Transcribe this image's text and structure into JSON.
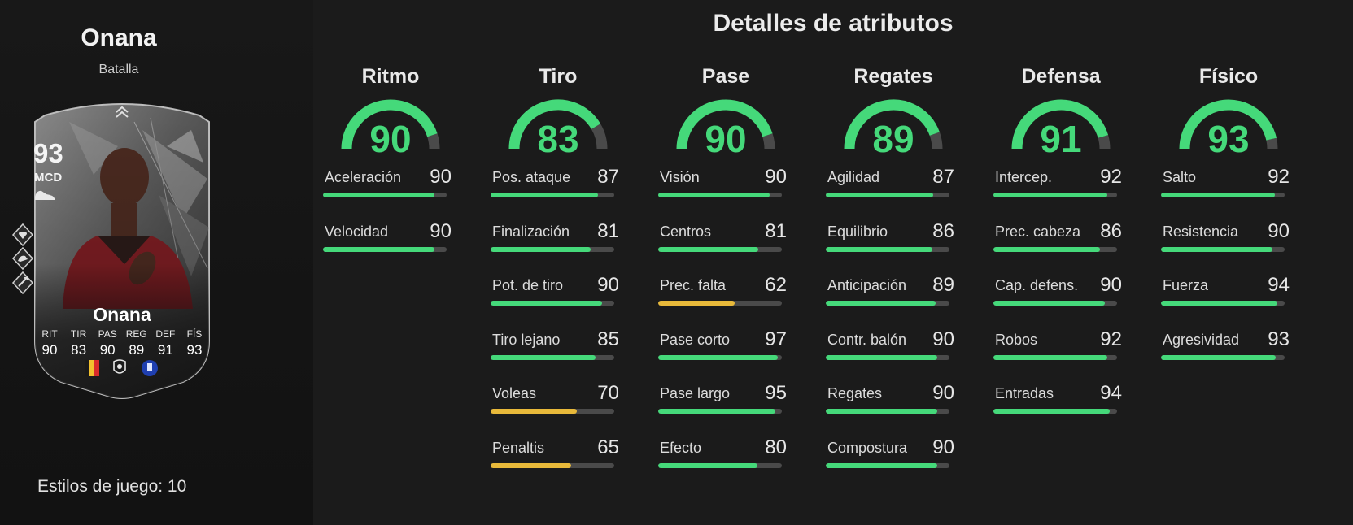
{
  "player": {
    "name": "Onana",
    "variant": "Batalla",
    "playstyles_label": "Estilos de juego: 10"
  },
  "card": {
    "rating": "93",
    "position": "MCD",
    "name": "Onana",
    "stats": [
      {
        "label": "RIT",
        "value": "90"
      },
      {
        "label": "TIR",
        "value": "83"
      },
      {
        "label": "PAS",
        "value": "90"
      },
      {
        "label": "REG",
        "value": "89"
      },
      {
        "label": "DEF",
        "value": "91"
      },
      {
        "label": "FÍS",
        "value": "93"
      }
    ],
    "nation_flag_colors": [
      "#1a1a1a",
      "#f2c12e",
      "#d92b2b"
    ],
    "league_icon": "premier-league-lion-icon",
    "club_icon": "everton-crest-icon",
    "playstyle_badges": [
      "heart-shield-icon",
      "arm-flex-icon",
      "boot-wrench-icon"
    ]
  },
  "attributes": {
    "title": "Detalles de atributos",
    "colors": {
      "high": "#45d97a",
      "mid": "#e8b93a",
      "track": "#4a4a4a"
    },
    "groups": [
      {
        "name": "Ritmo",
        "value": "90",
        "items": [
          {
            "name": "Aceleración",
            "value": "90"
          },
          {
            "name": "Velocidad",
            "value": "90"
          }
        ]
      },
      {
        "name": "Tiro",
        "value": "83",
        "items": [
          {
            "name": "Pos. ataque",
            "value": "87"
          },
          {
            "name": "Finalización",
            "value": "81"
          },
          {
            "name": "Pot. de tiro",
            "value": "90"
          },
          {
            "name": "Tiro lejano",
            "value": "85"
          },
          {
            "name": "Voleas",
            "value": "70"
          },
          {
            "name": "Penaltis",
            "value": "65"
          }
        ]
      },
      {
        "name": "Pase",
        "value": "90",
        "items": [
          {
            "name": "Visión",
            "value": "90"
          },
          {
            "name": "Centros",
            "value": "81"
          },
          {
            "name": "Prec. falta",
            "value": "62"
          },
          {
            "name": "Pase corto",
            "value": "97"
          },
          {
            "name": "Pase largo",
            "value": "95"
          },
          {
            "name": "Efecto",
            "value": "80"
          }
        ]
      },
      {
        "name": "Regates",
        "value": "89",
        "items": [
          {
            "name": "Agilidad",
            "value": "87"
          },
          {
            "name": "Equilibrio",
            "value": "86"
          },
          {
            "name": "Anticipación",
            "value": "89"
          },
          {
            "name": "Contr. balón",
            "value": "90"
          },
          {
            "name": "Regates",
            "value": "90"
          },
          {
            "name": "Compostura",
            "value": "90"
          }
        ]
      },
      {
        "name": "Defensa",
        "value": "91",
        "items": [
          {
            "name": "Intercep.",
            "value": "92"
          },
          {
            "name": "Prec. cabeza",
            "value": "86"
          },
          {
            "name": "Cap. defens.",
            "value": "90"
          },
          {
            "name": "Robos",
            "value": "92"
          },
          {
            "name": "Entradas",
            "value": "94"
          }
        ]
      },
      {
        "name": "Físico",
        "value": "93",
        "items": [
          {
            "name": "Salto",
            "value": "92"
          },
          {
            "name": "Resistencia",
            "value": "90"
          },
          {
            "name": "Fuerza",
            "value": "94"
          },
          {
            "name": "Agresividad",
            "value": "93"
          }
        ]
      }
    ]
  }
}
